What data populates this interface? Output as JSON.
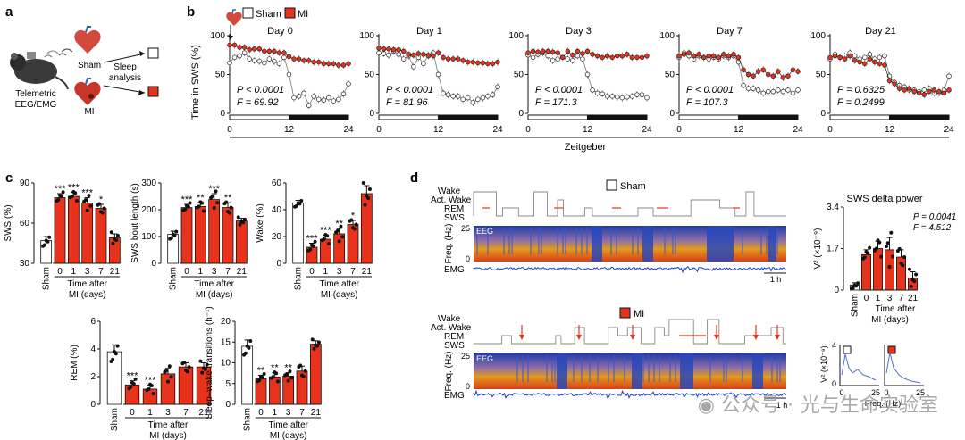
{
  "panels": {
    "a": "a",
    "b": "b",
    "c": "c",
    "d": "d"
  },
  "panel_a": {
    "setup_label": "Telemetric EEG/EMG",
    "sham_label": "Sham",
    "mi_label": "MI",
    "arrow_label": "Sleep analysis"
  },
  "legend": {
    "sham": "Sham",
    "mi": "MI"
  },
  "colors": {
    "mi_red": "#e8331c",
    "sham_white": "#ffffff",
    "eeg_blue": "#1c3fd6"
  },
  "panel_b": {
    "ylabel": "Time in SWS (%)",
    "xlabel": "Zeitgeber",
    "days": [
      {
        "title": "Day 0",
        "p": "P < 0.0001",
        "f": "F = 69.92"
      },
      {
        "title": "Day 1",
        "p": "P < 0.0001",
        "f": "F = 81.96"
      },
      {
        "title": "Day 3",
        "p": "P < 0.0001",
        "f": "F = 171.3"
      },
      {
        "title": "Day 7",
        "p": "P < 0.0001",
        "f": "F = 107.3"
      },
      {
        "title": "Day 21",
        "p": "P = 0.6325",
        "f": "F = 0.2499"
      }
    ],
    "yticks": [
      "0",
      "50",
      "100"
    ],
    "xticks": [
      "0",
      "12",
      "24"
    ]
  },
  "panel_c": {
    "groups": [
      "Sham",
      "0",
      "1",
      "3",
      "7",
      "21"
    ],
    "xlabel": "Time after MI (days)",
    "charts": [
      {
        "ylabel": "SWS (%)",
        "yticks": [
          "30",
          "60",
          "90"
        ]
      },
      {
        "ylabel": "SWS bout length (s)",
        "yticks": [
          "0",
          "100",
          "200",
          "300"
        ]
      },
      {
        "ylabel": "Wake (%)",
        "yticks": [
          "0",
          "20",
          "40",
          "60"
        ]
      },
      {
        "ylabel": "REM (%)",
        "yticks": [
          "0",
          "2",
          "4",
          "6"
        ]
      },
      {
        "ylabel": "Sleep–wake transitions (h⁻¹)",
        "yticks": [
          "0",
          "5",
          "10",
          "15",
          "20"
        ]
      }
    ]
  },
  "panel_d": {
    "sham_title": "Sham",
    "mi_title": "MI",
    "hyp_states": [
      "Wake",
      "Act. Wake",
      "REM",
      "SWS"
    ],
    "freq_label": "Freq. (Hz)",
    "eeg_label": "EEG",
    "emg_label": "EMG",
    "freq_ticks": [
      "0",
      "25"
    ],
    "scale": "1 h",
    "delta_title": "SWS delta power",
    "delta_ylabel": "V² (×10⁻⁹)",
    "delta_p": "P = 0.0041",
    "delta_f": "F = 4.512",
    "delta_yticks": [
      "0",
      "1.7",
      "3.4"
    ],
    "spec_ylabel": "V² (×10⁻⁹)",
    "spec_yticks": [
      "0",
      "4"
    ],
    "spec_xticks": [
      "0",
      "25"
    ],
    "spec_xlabel": "Freq. (Hz)"
  },
  "watermark": {
    "left": "公众号",
    "sep": "·",
    "right": "光与生命实验室"
  },
  "chart_data": [
    {
      "type": "line",
      "title": "Day 0",
      "ylabel": "Time in SWS (%)",
      "xlabel": "Zeitgeber",
      "ylim": [
        0,
        100
      ],
      "xlim": [
        0,
        24
      ],
      "x": [
        0,
        1,
        2,
        3,
        4,
        5,
        6,
        7,
        8,
        9,
        10,
        11,
        12,
        13,
        14,
        15,
        16,
        17,
        18,
        19,
        20,
        21,
        22,
        23,
        24
      ],
      "series": [
        {
          "name": "MI",
          "values": [
            88,
            88,
            85,
            85,
            82,
            83,
            83,
            80,
            80,
            80,
            78,
            78,
            73,
            70,
            70,
            68,
            68,
            66,
            66,
            64,
            64,
            64,
            62,
            62,
            64
          ]
        },
        {
          "name": "Sham",
          "values": [
            65,
            72,
            74,
            78,
            70,
            68,
            67,
            65,
            70,
            67,
            64,
            72,
            50,
            20,
            22,
            26,
            10,
            22,
            18,
            17,
            20,
            16,
            18,
            25,
            38
          ]
        }
      ]
    },
    {
      "type": "line",
      "title": "Day 1",
      "ylabel": "Time in SWS (%)",
      "xlabel": "Zeitgeber",
      "ylim": [
        0,
        100
      ],
      "xlim": [
        0,
        24
      ],
      "x": [
        0,
        1,
        2,
        3,
        4,
        5,
        6,
        7,
        8,
        9,
        10,
        11,
        12,
        13,
        14,
        15,
        16,
        17,
        18,
        19,
        20,
        21,
        22,
        23,
        24
      ],
      "series": [
        {
          "name": "MI",
          "values": [
            84,
            83,
            83,
            82,
            82,
            80,
            76,
            75,
            77,
            76,
            74,
            74,
            78,
            72,
            70,
            70,
            70,
            68,
            66,
            66,
            65,
            65,
            64,
            64,
            66
          ]
        },
        {
          "name": "Sham",
          "values": [
            78,
            77,
            75,
            80,
            76,
            70,
            74,
            60,
            72,
            64,
            75,
            78,
            50,
            26,
            24,
            22,
            22,
            18,
            20,
            14,
            18,
            20,
            22,
            24,
            34
          ]
        }
      ]
    },
    {
      "type": "line",
      "title": "Day 3",
      "ylabel": "Time in SWS (%)",
      "xlabel": "Zeitgeber",
      "ylim": [
        0,
        100
      ],
      "xlim": [
        0,
        24
      ],
      "x": [
        0,
        1,
        2,
        3,
        4,
        5,
        6,
        7,
        8,
        9,
        10,
        11,
        12,
        13,
        14,
        15,
        16,
        17,
        18,
        19,
        20,
        21,
        22,
        23,
        24
      ],
      "series": [
        {
          "name": "MI",
          "values": [
            78,
            80,
            79,
            80,
            80,
            79,
            78,
            72,
            80,
            75,
            80,
            77,
            80,
            76,
            74,
            72,
            74,
            72,
            74,
            74,
            76,
            72,
            72,
            72,
            74
          ]
        },
        {
          "name": "Sham",
          "values": [
            75,
            72,
            76,
            78,
            74,
            68,
            70,
            72,
            70,
            68,
            74,
            70,
            50,
            30,
            26,
            25,
            22,
            22,
            21,
            20,
            21,
            22,
            24,
            24,
            20
          ]
        }
      ]
    },
    {
      "type": "line",
      "title": "Day 7",
      "ylabel": "Time in SWS (%)",
      "xlabel": "Zeitgeber",
      "ylim": [
        0,
        100
      ],
      "xlim": [
        0,
        24
      ],
      "x": [
        0,
        1,
        2,
        3,
        4,
        5,
        6,
        7,
        8,
        9,
        10,
        11,
        12,
        13,
        14,
        15,
        16,
        17,
        18,
        19,
        20,
        21,
        22,
        23,
        24
      ],
      "series": [
        {
          "name": "MI",
          "values": [
            74,
            76,
            78,
            74,
            76,
            72,
            74,
            74,
            72,
            76,
            74,
            76,
            72,
            56,
            50,
            48,
            54,
            56,
            50,
            48,
            54,
            46,
            48,
            56,
            54
          ]
        },
        {
          "name": "Sham",
          "values": [
            72,
            78,
            74,
            70,
            74,
            72,
            70,
            72,
            70,
            74,
            72,
            74,
            66,
            36,
            32,
            32,
            30,
            26,
            28,
            28,
            30,
            28,
            30,
            26,
            30
          ]
        }
      ]
    },
    {
      "type": "line",
      "title": "Day 21",
      "ylabel": "Time in SWS (%)",
      "xlabel": "Zeitgeber",
      "ylim": [
        0,
        100
      ],
      "xlim": [
        0,
        24
      ],
      "x": [
        0,
        1,
        2,
        3,
        4,
        5,
        6,
        7,
        8,
        9,
        10,
        11,
        12,
        13,
        14,
        15,
        16,
        17,
        18,
        19,
        20,
        21,
        22,
        23,
        24
      ],
      "series": [
        {
          "name": "MI",
          "values": [
            72,
            74,
            72,
            70,
            74,
            68,
            66,
            64,
            70,
            66,
            64,
            62,
            42,
            38,
            32,
            30,
            32,
            28,
            26,
            24,
            28,
            30,
            28,
            26,
            30
          ]
        },
        {
          "name": "Sham",
          "values": [
            70,
            76,
            72,
            74,
            78,
            74,
            70,
            72,
            76,
            70,
            72,
            74,
            48,
            40,
            36,
            34,
            30,
            30,
            28,
            30,
            32,
            26,
            26,
            30,
            48
          ]
        }
      ]
    },
    {
      "type": "bar",
      "title": "SWS (%)",
      "xlabel": "Time after MI (days)",
      "ylabel": "SWS (%)",
      "categories": [
        "Sham",
        "0",
        "1",
        "3",
        "7",
        "21"
      ],
      "ylim": [
        30,
        90
      ],
      "values": [
        47,
        79,
        80,
        75,
        71,
        49
      ],
      "errors": [
        3,
        3,
        3,
        4,
        3,
        3
      ],
      "annotations": [
        "",
        "***",
        "***",
        "***",
        "*",
        ""
      ]
    },
    {
      "type": "bar",
      "title": "SWS bout length (s)",
      "xlabel": "Time after MI (days)",
      "ylabel": "SWS bout length (s)",
      "categories": [
        "Sham",
        "0",
        "1",
        "3",
        "7",
        "21"
      ],
      "ylim": [
        0,
        300
      ],
      "values": [
        108,
        208,
        212,
        238,
        208,
        158
      ],
      "errors": [
        12,
        12,
        15,
        22,
        18,
        10
      ],
      "annotations": [
        "",
        "***",
        "**",
        "***",
        "**",
        ""
      ]
    },
    {
      "type": "bar",
      "title": "Wake (%)",
      "xlabel": "Time after MI (days)",
      "ylabel": "Wake (%)",
      "categories": [
        "Sham",
        "0",
        "1",
        "3",
        "7",
        "21"
      ],
      "ylim": [
        0,
        60
      ],
      "values": [
        45,
        12,
        18,
        22,
        29,
        52
      ],
      "errors": [
        2,
        3,
        3,
        4,
        3,
        6
      ],
      "annotations": [
        "",
        "***",
        "***",
        "**",
        "*",
        ""
      ]
    },
    {
      "type": "bar",
      "title": "REM (%)",
      "xlabel": "Time after MI (days)",
      "ylabel": "REM (%)",
      "categories": [
        "Sham",
        "0",
        "1",
        "3",
        "7",
        "21"
      ],
      "ylim": [
        0,
        6
      ],
      "values": [
        3.8,
        1.4,
        1.1,
        2.2,
        2.7,
        2.7
      ],
      "errors": [
        0.5,
        0.3,
        0.3,
        0.4,
        0.3,
        0.3
      ],
      "annotations": [
        "",
        "***",
        "***",
        "",
        "",
        ""
      ]
    },
    {
      "type": "bar",
      "title": "Sleep–wake transitions (h⁻¹)",
      "xlabel": "Time after MI (days)",
      "ylabel": "Sleep–wake transitions (h⁻¹)",
      "categories": [
        "Sham",
        "0",
        "1",
        "3",
        "7",
        "21"
      ],
      "ylim": [
        0,
        20
      ],
      "values": [
        14,
        6.2,
        6.6,
        6.8,
        8.0,
        14.5
      ],
      "errors": [
        1.5,
        0.8,
        1.0,
        0.8,
        1.2,
        0.8
      ],
      "annotations": [
        "",
        "**",
        "**",
        "**",
        "",
        ""
      ]
    },
    {
      "type": "bar",
      "title": "SWS delta power",
      "xlabel": "Time after MI (days)",
      "ylabel": "V² (×10⁻⁹)",
      "categories": [
        "Sham",
        "0",
        "1",
        "3",
        "7",
        "21"
      ],
      "ylim": [
        0,
        3.4
      ],
      "values": [
        0.2,
        1.45,
        1.7,
        1.65,
        1.35,
        0.5
      ],
      "errors": [
        0.1,
        0.2,
        0.3,
        0.5,
        0.3,
        0.25
      ],
      "annotations": [
        "",
        "",
        "",
        "",
        "",
        ""
      ]
    }
  ]
}
